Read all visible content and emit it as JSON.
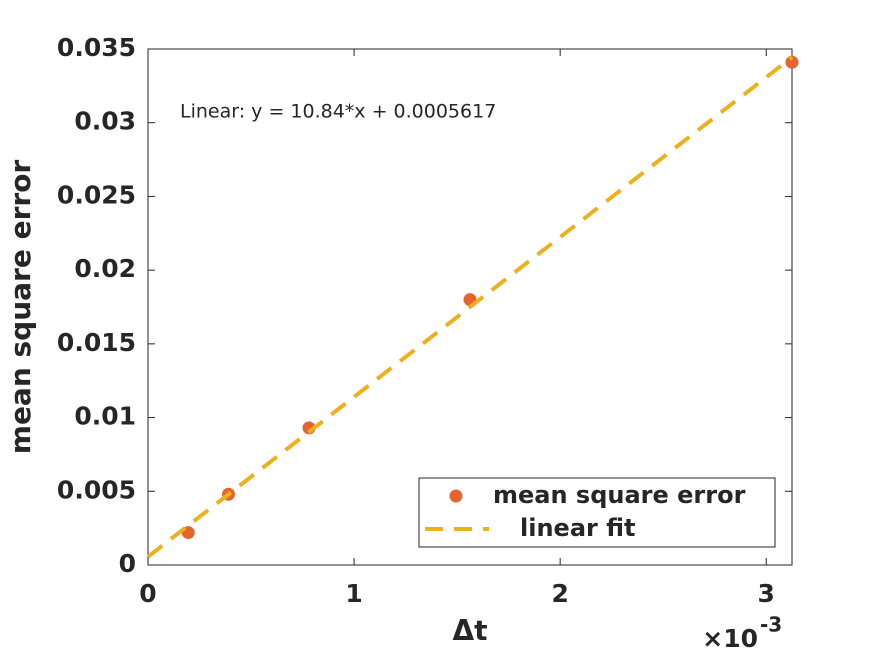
{
  "chart_data": {
    "type": "scatter",
    "annotation": "Linear:  y = 10.84*x + 0.0005617",
    "x_label": "Δt",
    "y_label": "mean square error",
    "x_exponent_base": "×10",
    "x_exponent": "-3",
    "xlim": [
      0,
      0.003125
    ],
    "ylim": [
      0,
      0.035
    ],
    "xticks": [
      0,
      {
        "value": 0.001,
        "label": "1"
      },
      {
        "value": 0.002,
        "label": "2"
      },
      {
        "value": 0.003,
        "label": "3"
      }
    ],
    "yticks": [
      0,
      0.005,
      0.01,
      0.015,
      0.02,
      0.025,
      0.03,
      0.035
    ],
    "legend": "lower right",
    "series": [
      {
        "name": "mean square error",
        "color": "#E5652D",
        "mode": "markers",
        "x": [
          0.0001953125,
          0.000390625,
          0.00078125,
          0.0015625,
          0.003125
        ],
        "values": [
          0.0022,
          0.0048,
          0.0093,
          0.018,
          0.0341
        ]
      },
      {
        "name": "linear fit",
        "color": "#EDB120",
        "mode": "dashed-line",
        "x": [
          0,
          0.003125
        ],
        "values": [
          0.0005617,
          0.0344367
        ]
      }
    ]
  }
}
